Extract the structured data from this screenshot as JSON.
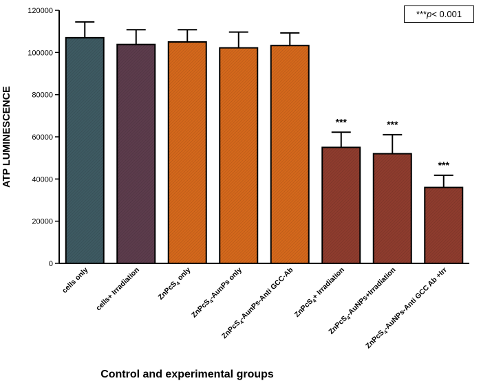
{
  "chart_data": {
    "type": "bar",
    "title": "",
    "xlabel": "Control and experimental groups",
    "ylabel": "ATP LUMINESCENCE",
    "ylim": [
      0,
      120000
    ],
    "yticks": [
      0,
      20000,
      40000,
      60000,
      80000,
      100000,
      120000
    ],
    "ytick_labels": [
      "0",
      "20000",
      "40000",
      "60000",
      "80000",
      "100000",
      "120000"
    ],
    "categories": [
      {
        "pre": "cells only",
        "sub": "",
        "post": ""
      },
      {
        "pre": "cells+ Irradiation",
        "sub": "",
        "post": ""
      },
      {
        "pre": "ZnPcS",
        "sub": "4",
        "post": " only"
      },
      {
        "pre": "ZnPcS",
        "sub": "4",
        "post": "-AunPs only"
      },
      {
        "pre": "ZnPcS",
        "sub": "4",
        "post": "-AunPs-Anti GCC-Ab"
      },
      {
        "pre": "ZnPcS",
        "sub": "4",
        "post": "+ Irradiation"
      },
      {
        "pre": "ZnPcS",
        "sub": "4",
        "post": "-AuNPs+Irradiation"
      },
      {
        "pre": "ZnPcS",
        "sub": "4",
        "post": "-AuNPs-Anti GCC Ab +Irr"
      }
    ],
    "values": [
      107000,
      103800,
      105000,
      102200,
      103300,
      55000,
      52000,
      36000
    ],
    "errors": [
      7500,
      7000,
      5800,
      7500,
      6000,
      7200,
      9000,
      5800
    ],
    "colors": [
      "#3e5a62",
      "#5c3c4c",
      "#d4681c",
      "#d4681c",
      "#d4681c",
      "#8e3c2e",
      "#8e3c2e",
      "#8e3c2e"
    ],
    "significance": [
      "",
      "",
      "",
      "",
      "",
      "***",
      "***",
      "***"
    ],
    "legend": {
      "stars": "***",
      "p": "p",
      "rest": " < 0.001"
    }
  }
}
